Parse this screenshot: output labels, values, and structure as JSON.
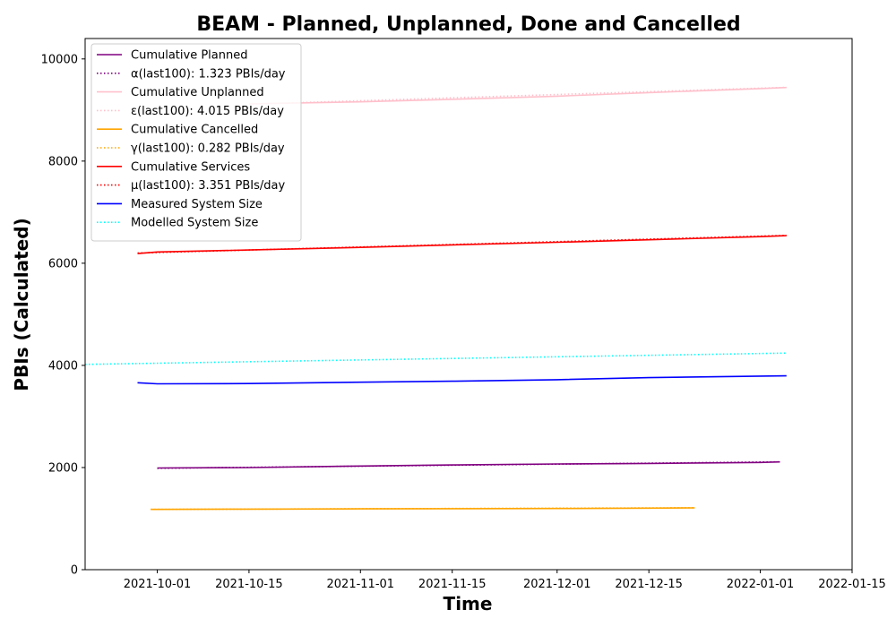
{
  "chart_data": {
    "type": "line",
    "title": "BEAM - Planned, Unplanned, Done  and Cancelled",
    "xlabel": "Time",
    "ylabel": "PBIs (Calculated)",
    "xlim": [
      "2021-09-20",
      "2022-01-15"
    ],
    "ylim": [
      0,
      10400
    ],
    "x_ticks": [
      "2021-10-01",
      "2021-10-15",
      "2021-11-01",
      "2021-11-15",
      "2021-12-01",
      "2021-12-15",
      "2022-01-01",
      "2022-01-15"
    ],
    "y_ticks": [
      0,
      2000,
      4000,
      6000,
      8000,
      10000
    ],
    "grid": false,
    "legend_position": "top-left",
    "series": [
      {
        "name": "Cumulative Planned",
        "color": "#800080",
        "style": "solid",
        "x": [
          "2021-10-01",
          "2021-10-15",
          "2021-11-01",
          "2021-11-15",
          "2021-12-01",
          "2021-12-15",
          "2022-01-01",
          "2022-01-04"
        ],
        "y": [
          1990,
          2000,
          2030,
          2050,
          2070,
          2080,
          2100,
          2110
        ]
      },
      {
        "name": "α(last100): 1.323 PBIs/day",
        "color": "#800080",
        "style": "dotted",
        "x": [
          "2021-10-01",
          "2022-01-04"
        ],
        "y": [
          1985,
          2112
        ]
      },
      {
        "name": "Cumulative Unplanned",
        "color": "#ffc0cb",
        "style": "solid",
        "x": [
          "2021-10-15",
          "2021-11-01",
          "2021-11-15",
          "2021-12-01",
          "2021-12-15",
          "2022-01-01",
          "2022-01-05"
        ],
        "y": [
          9120,
          9160,
          9210,
          9270,
          9340,
          9420,
          9440
        ]
      },
      {
        "name": "ε(last100): 4.015 PBIs/day",
        "color": "#ffc0cb",
        "style": "dotted",
        "x": [
          "2021-10-15",
          "2022-01-05"
        ],
        "y": [
          9115,
          9445
        ]
      },
      {
        "name": "Cumulative Cancelled",
        "color": "#ffa500",
        "style": "solid",
        "x": [
          "2021-09-30",
          "2021-10-15",
          "2021-11-01",
          "2021-11-15",
          "2021-12-01",
          "2021-12-15",
          "2021-12-22"
        ],
        "y": [
          1180,
          1185,
          1190,
          1195,
          1198,
          1205,
          1210
        ]
      },
      {
        "name": "γ(last100): 0.282 PBIs/day",
        "color": "#ffa500",
        "style": "dotted",
        "x": [
          "2021-09-30",
          "2021-12-22"
        ],
        "y": [
          1180,
          1212
        ]
      },
      {
        "name": "Cumulative Services",
        "color": "#ff0000",
        "style": "solid",
        "x": [
          "2021-09-28",
          "2021-10-01",
          "2021-10-15",
          "2021-11-01",
          "2021-11-15",
          "2021-12-01",
          "2021-12-15",
          "2022-01-01",
          "2022-01-05"
        ],
        "y": [
          6190,
          6220,
          6260,
          6310,
          6360,
          6410,
          6460,
          6520,
          6540
        ]
      },
      {
        "name": "μ(last100): 3.351 PBIs/day",
        "color": "#ff0000",
        "style": "dotted",
        "x": [
          "2021-09-28",
          "2022-01-05"
        ],
        "y": [
          6200,
          6545
        ]
      },
      {
        "name": "Measured System Size",
        "color": "#0000ff",
        "style": "solid",
        "x": [
          "2021-09-28",
          "2021-10-01",
          "2021-10-15",
          "2021-11-01",
          "2021-11-15",
          "2021-12-01",
          "2021-12-15",
          "2022-01-01",
          "2022-01-05"
        ],
        "y": [
          3660,
          3640,
          3645,
          3670,
          3690,
          3720,
          3760,
          3790,
          3795
        ]
      },
      {
        "name": "Modelled System Size",
        "color": "#00ffff",
        "style": "dotted",
        "x": [
          "2021-09-20",
          "2022-01-05"
        ],
        "y": [
          4020,
          4240
        ]
      }
    ]
  }
}
